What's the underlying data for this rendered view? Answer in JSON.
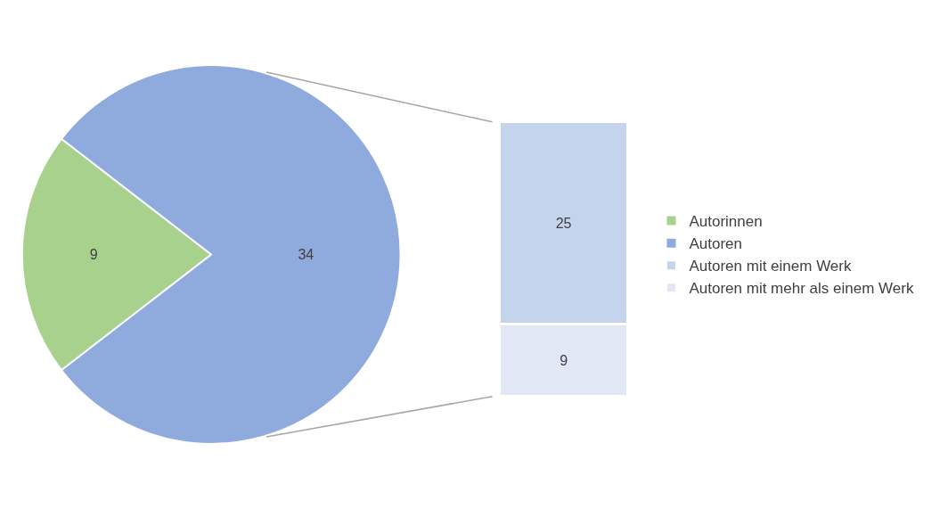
{
  "chart_data": [
    {
      "type": "pie",
      "categories": [
        "Autorinnen",
        "Autoren"
      ],
      "values": [
        9,
        34
      ],
      "colors": [
        "#a9d18e",
        "#8faadc"
      ],
      "data_labels": true,
      "legend": "right"
    },
    {
      "type": "bar",
      "stacked": true,
      "categories": [
        null
      ],
      "series": [
        {
          "name": "Autoren mit mehr als einem Werk",
          "color": "#e1e7f4",
          "values": [
            9
          ]
        },
        {
          "name": "Autoren mit einem Werk",
          "color": "#c5d4ed",
          "values": [
            25
          ]
        }
      ],
      "data_labels": true,
      "legend": "right"
    }
  ]
}
